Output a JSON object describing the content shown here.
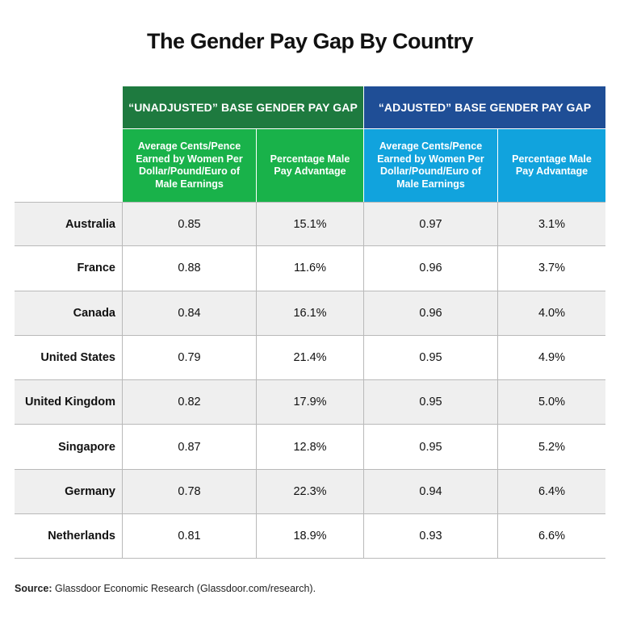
{
  "title": "The Gender Pay Gap By Country",
  "colors": {
    "unadjusted_header": "#1e7a3f",
    "unadjusted_sub": "#19b24a",
    "adjusted_header": "#1f4e96",
    "adjusted_sub": "#11a3dd"
  },
  "groups": {
    "unadjusted": "“UNADJUSTED” BASE GENDER PAY GAP",
    "adjusted": "“ADJUSTED” BASE GENDER PAY GAP"
  },
  "columns": {
    "cents": "Average Cents/Pence Earned by Women Per Dollar/Pound/Euro of Male Earnings",
    "pct": "Percentage Male Pay Advantage"
  },
  "chart_data": {
    "type": "table",
    "title": "The Gender Pay Gap By Country",
    "columns": [
      "“UNADJUSTED” BASE GENDER PAY GAP — Average Cents/Pence Earned by Women Per Dollar/Pound/Euro of Male Earnings",
      "“UNADJUSTED” BASE GENDER PAY GAP — Percentage Male Pay Advantage",
      "“ADJUSTED” BASE GENDER PAY GAP — Average Cents/Pence Earned by Women Per Dollar/Pound/Euro of Male Earnings",
      "“ADJUSTED” BASE GENDER PAY GAP — Percentage Male Pay Advantage"
    ],
    "rows": [
      {
        "country": "Australia",
        "unadj_cents": "0.85",
        "unadj_pct": "15.1%",
        "adj_cents": "0.97",
        "adj_pct": "3.1%"
      },
      {
        "country": "France",
        "unadj_cents": "0.88",
        "unadj_pct": "11.6%",
        "adj_cents": "0.96",
        "adj_pct": "3.7%"
      },
      {
        "country": "Canada",
        "unadj_cents": "0.84",
        "unadj_pct": "16.1%",
        "adj_cents": "0.96",
        "adj_pct": "4.0%"
      },
      {
        "country": "United States",
        "unadj_cents": "0.79",
        "unadj_pct": "21.4%",
        "adj_cents": "0.95",
        "adj_pct": "4.9%"
      },
      {
        "country": "United Kingdom",
        "unadj_cents": "0.82",
        "unadj_pct": "17.9%",
        "adj_cents": "0.95",
        "adj_pct": "5.0%"
      },
      {
        "country": "Singapore",
        "unadj_cents": "0.87",
        "unadj_pct": "12.8%",
        "adj_cents": "0.95",
        "adj_pct": "5.2%"
      },
      {
        "country": "Germany",
        "unadj_cents": "0.78",
        "unadj_pct": "22.3%",
        "adj_cents": "0.94",
        "adj_pct": "6.4%"
      },
      {
        "country": "Netherlands",
        "unadj_cents": "0.81",
        "unadj_pct": "18.9%",
        "adj_cents": "0.93",
        "adj_pct": "6.6%"
      }
    ]
  },
  "source": {
    "label": "Source:",
    "text": " Glassdoor Economic Research (Glassdoor.com/research)."
  }
}
